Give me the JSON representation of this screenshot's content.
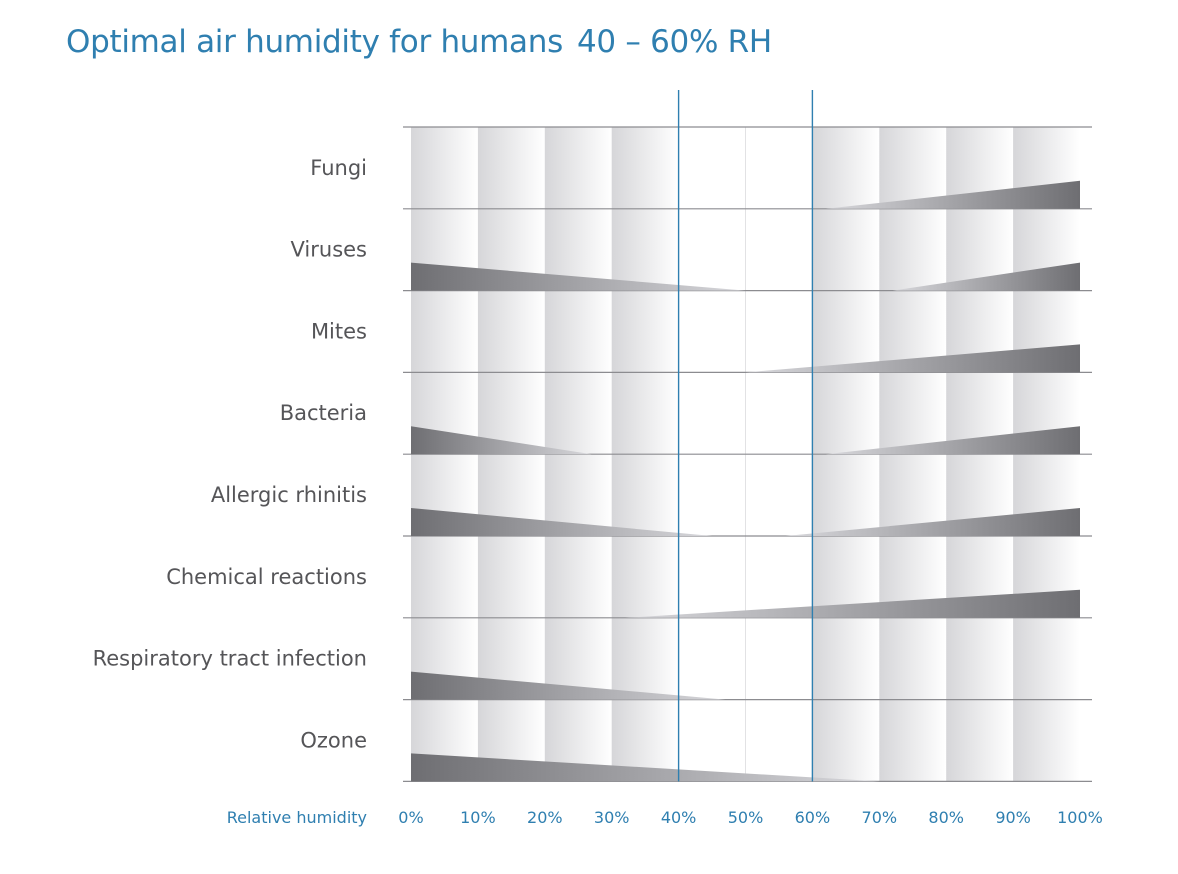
{
  "title": "Optimal air humidity for humans",
  "title_range": "40 – 60% RH",
  "colors": {
    "accent": "#2f7fb0",
    "band_dark": "#c8c8cc",
    "band_light": "#ffffff",
    "wedge_dark": "#6e6e72",
    "wedge_light": "#d8d8dc",
    "row_line": "#8c8c90",
    "label": "#555558"
  },
  "chart_data": {
    "type": "area",
    "title": "Optimal air humidity for humans 40 – 60% RH",
    "xlabel": "Relative humidity",
    "ylabel": "",
    "x_ticks": [
      "0%",
      "10%",
      "20%",
      "30%",
      "40%",
      "50%",
      "60%",
      "70%",
      "80%",
      "90%",
      "100%"
    ],
    "xlim": [
      0,
      100
    ],
    "optimal_range": [
      40,
      60
    ],
    "grid": true,
    "legend": "none",
    "series": [
      {
        "name": "Fungi",
        "low": null,
        "high": {
          "from": 62,
          "to": 100
        }
      },
      {
        "name": "Viruses",
        "low": {
          "from": 0,
          "to": 50
        },
        "high": {
          "from": 72,
          "to": 100
        }
      },
      {
        "name": "Mites",
        "low": null,
        "high": {
          "from": 50,
          "to": 100
        }
      },
      {
        "name": "Bacteria",
        "low": {
          "from": 0,
          "to": 27
        },
        "high": {
          "from": 62,
          "to": 100
        }
      },
      {
        "name": "Allergic rhinitis",
        "low": {
          "from": 0,
          "to": 45
        },
        "high": {
          "from": 56,
          "to": 100
        }
      },
      {
        "name": "Chemical reactions",
        "low": null,
        "high": {
          "from": 32,
          "to": 100
        }
      },
      {
        "name": "Respiratory tract infection",
        "low": {
          "from": 0,
          "to": 47
        },
        "high": null
      },
      {
        "name": "Ozone",
        "low": {
          "from": 0,
          "to": 70
        },
        "high": null
      }
    ]
  }
}
